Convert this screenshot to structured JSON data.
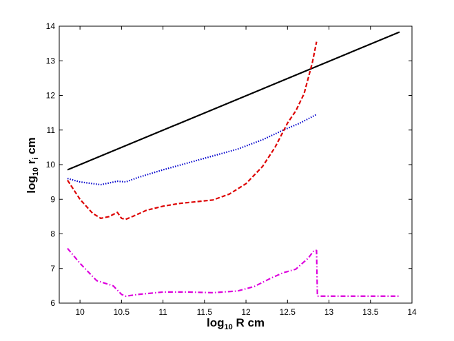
{
  "chart_data": {
    "type": "line",
    "xlabel": {
      "main": "log",
      "sub": "10",
      "rest": " R cm"
    },
    "ylabel": {
      "main": "log",
      "sub": "10",
      "mid": " r",
      "sub2": "i",
      "rest": " cm"
    },
    "xlim": [
      9.75,
      14
    ],
    "ylim": [
      6,
      14
    ],
    "xticks": [
      10,
      10.5,
      11,
      11.5,
      12,
      12.5,
      13,
      13.5,
      14
    ],
    "xtick_labels": [
      "10",
      "10.5",
      "11",
      "11.5",
      "12",
      "12.5",
      "13",
      "13.5",
      "14"
    ],
    "yticks": [
      6,
      7,
      8,
      9,
      10,
      11,
      12,
      13,
      14
    ],
    "ytick_labels": [
      "6",
      "7",
      "8",
      "9",
      "10",
      "11",
      "12",
      "13",
      "14"
    ],
    "grid": false,
    "legend": "none",
    "series": [
      {
        "color": "#000000",
        "style": "solid",
        "x": [
          9.85,
          13.85
        ],
        "y": [
          9.85,
          13.83
        ]
      },
      {
        "color": "#0000cc",
        "style": "dotted",
        "x": [
          9.85,
          10.0,
          10.25,
          10.45,
          10.55,
          10.7,
          11.0,
          11.3,
          11.6,
          11.9,
          12.2,
          12.45,
          12.65,
          12.85
        ],
        "y": [
          9.6,
          9.5,
          9.42,
          9.52,
          9.5,
          9.63,
          9.85,
          10.05,
          10.25,
          10.45,
          10.72,
          11.0,
          11.2,
          11.45
        ]
      },
      {
        "color": "#dd0000",
        "style": "dashed",
        "x": [
          9.85,
          10.0,
          10.15,
          10.25,
          10.35,
          10.45,
          10.5,
          10.55,
          10.65,
          10.8,
          11.0,
          11.2,
          11.4,
          11.6,
          11.8,
          12.0,
          12.2,
          12.35,
          12.5,
          12.6,
          12.7,
          12.75,
          12.8,
          12.85
        ],
        "y": [
          9.55,
          9.0,
          8.6,
          8.45,
          8.5,
          8.62,
          8.45,
          8.42,
          8.52,
          8.68,
          8.8,
          8.88,
          8.93,
          8.98,
          9.15,
          9.45,
          9.95,
          10.5,
          11.2,
          11.55,
          12.05,
          12.5,
          12.95,
          13.55
        ]
      },
      {
        "color": "#dd00dd",
        "style": "dashdot",
        "x": [
          9.85,
          10.0,
          10.2,
          10.4,
          10.5,
          10.55,
          10.7,
          11.0,
          11.3,
          11.6,
          11.9,
          12.1,
          12.3,
          12.45,
          12.6,
          12.75,
          12.82,
          12.85,
          12.86,
          13.0,
          13.5,
          13.85
        ],
        "y": [
          7.58,
          7.15,
          6.65,
          6.5,
          6.25,
          6.2,
          6.25,
          6.32,
          6.32,
          6.3,
          6.35,
          6.48,
          6.72,
          6.88,
          6.98,
          7.3,
          7.52,
          7.52,
          6.2,
          6.2,
          6.2,
          6.2
        ]
      }
    ]
  }
}
